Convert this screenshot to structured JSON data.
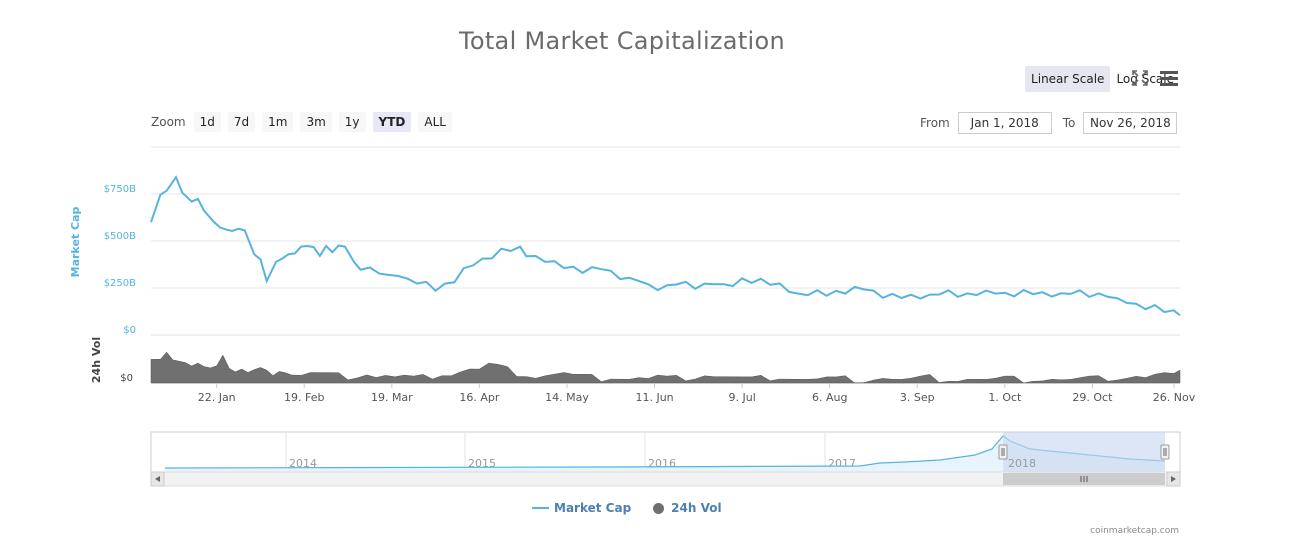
{
  "title": "Total Market Capitalization",
  "scale": {
    "linear_label": "Linear Scale",
    "log_label": "Log Scale",
    "active": "linear"
  },
  "icons": {
    "fullscreen": "fullscreen-icon",
    "menu": "menu-icon"
  },
  "zoom": {
    "label": "Zoom",
    "buttons": [
      "1d",
      "7d",
      "1m",
      "3m",
      "1y",
      "YTD",
      "ALL"
    ],
    "active": "YTD"
  },
  "range": {
    "from_label": "From",
    "from_value": "Jan 1, 2018",
    "to_label": "To",
    "to_value": "Nov 26, 2018"
  },
  "legend": {
    "market_cap": "Market Cap",
    "vol": "24h Vol"
  },
  "credits": "coinmarketcap.com",
  "colors": {
    "market_cap": "#56b3e0",
    "volume": "#6e6e6e",
    "axis_label": "#56b3e0",
    "navigator_mask": "#c7d5f0"
  },
  "chart_data": {
    "type": "line",
    "title": "Total Market Capitalization",
    "ylabel": "Market Cap",
    "y_ticks": [
      "$0",
      "$250B",
      "$500B",
      "$750B"
    ],
    "ylim": [
      0,
      1000
    ],
    "units": "billion USD",
    "x_ticks": [
      "22. Jan",
      "19. Feb",
      "19. Mar",
      "16. Apr",
      "14. May",
      "11. Jun",
      "9. Jul",
      "6. Aug",
      "3. Sep",
      "1. Oct",
      "29. Oct",
      "26. Nov"
    ],
    "series": [
      {
        "name": "Market Cap",
        "x_days": [
          0,
          3,
          5,
          8,
          10,
          13,
          15,
          17,
          20,
          22,
          24,
          26,
          28,
          30,
          33,
          35,
          37,
          40,
          42,
          44,
          46,
          48,
          50,
          52,
          54,
          56,
          58,
          60,
          62,
          65,
          67,
          70,
          73,
          76,
          79,
          82,
          85,
          88,
          91,
          94,
          97,
          100,
          103,
          106,
          109,
          112,
          115,
          118,
          120,
          123,
          126,
          129,
          132,
          135,
          138,
          141,
          144,
          147,
          150,
          153,
          156,
          159,
          162,
          165,
          168,
          171,
          174,
          177,
          180,
          183,
          186,
          189,
          192,
          195,
          198,
          201,
          204,
          207,
          210,
          213,
          216,
          219,
          222,
          225,
          228,
          231,
          234,
          237,
          240,
          243,
          246,
          249,
          252,
          255,
          258,
          261,
          264,
          267,
          270,
          273,
          276,
          279,
          282,
          285,
          288,
          291,
          294,
          297,
          300,
          303,
          306,
          309,
          312,
          315,
          318,
          321,
          324,
          327,
          329
        ],
        "values": [
          600,
          740,
          780,
          820,
          760,
          700,
          740,
          660,
          610,
          560,
          580,
          550,
          575,
          540,
          430,
          395,
          300,
          370,
          410,
          420,
          450,
          470,
          480,
          455,
          440,
          470,
          450,
          460,
          470,
          380,
          360,
          340,
          330,
          310,
          330,
          300,
          280,
          270,
          255,
          270,
          290,
          340,
          370,
          400,
          420,
          440,
          450,
          460,
          435,
          420,
          395,
          380,
          375,
          360,
          340,
          345,
          350,
          335,
          310,
          285,
          290,
          260,
          255,
          265,
          275,
          270,
          265,
          270,
          280,
          255,
          260,
          295,
          290,
          280,
          270,
          265,
          245,
          220,
          218,
          225,
          228,
          232,
          230,
          240,
          242,
          230,
          210,
          200,
          200,
          205,
          210,
          215,
          222,
          225,
          222,
          218,
          222,
          220,
          220,
          218,
          218,
          220,
          220,
          218,
          220,
          222,
          225,
          225,
          222,
          218,
          212,
          180,
          170,
          160,
          150,
          140,
          125,
          122,
          120
        ],
        "color": "#56b3e0"
      },
      {
        "name": "24h Vol",
        "x_days": [
          0,
          3,
          5,
          7,
          9,
          11,
          13,
          15,
          17,
          19,
          21,
          23,
          25,
          27,
          29,
          31,
          33,
          35,
          37,
          39,
          41,
          43,
          45,
          48,
          51,
          54,
          57,
          60,
          63,
          66,
          69,
          72,
          75,
          78,
          81,
          84,
          87,
          90,
          93,
          96,
          99,
          102,
          105,
          108,
          111,
          114,
          117,
          120,
          123,
          126,
          129,
          132,
          135,
          138,
          141,
          144,
          147,
          150,
          153,
          156,
          159,
          162,
          165,
          168,
          171,
          174,
          177,
          180,
          183,
          186,
          189,
          192,
          195,
          198,
          201,
          204,
          207,
          210,
          213,
          216,
          219,
          222,
          225,
          228,
          231,
          234,
          237,
          240,
          243,
          246,
          249,
          252,
          255,
          258,
          261,
          264,
          267,
          270,
          273,
          276,
          279,
          282,
          285,
          288,
          291,
          294,
          297,
          300,
          303,
          306,
          309,
          312,
          315,
          318,
          321,
          324,
          327,
          329
        ],
        "values": [
          55,
          70,
          85,
          65,
          60,
          55,
          45,
          50,
          40,
          35,
          55,
          78,
          45,
          35,
          40,
          30,
          35,
          38,
          30,
          32,
          40,
          35,
          28,
          25,
          30,
          28,
          26,
          24,
          22,
          25,
          30,
          22,
          25,
          20,
          22,
          18,
          20,
          24,
          30,
          28,
          35,
          40,
          38,
          50,
          45,
          38,
          30,
          28,
          22,
          26,
          28,
          30,
          24,
          22,
          20,
          18,
          22,
          20,
          18,
          20,
          16,
          22,
          18,
          18,
          20,
          22,
          28,
          24,
          22,
          20,
          18,
          16,
          18,
          20,
          22,
          20,
          18,
          16,
          15,
          18,
          16,
          17,
          15,
          14,
          18,
          20,
          16,
          14,
          15,
          18,
          20,
          16,
          17,
          15,
          18,
          16,
          14,
          15,
          18,
          16,
          15,
          17,
          16,
          18,
          15,
          14,
          16,
          18,
          17,
          19,
          20,
          22,
          25,
          20,
          26,
          28,
          24,
          30
        ],
        "color": "#6e6e6e"
      }
    ],
    "navigator": {
      "year_labels": [
        "2014",
        "2015",
        "2016",
        "2017",
        "2018"
      ],
      "selected_range": "2018"
    }
  }
}
